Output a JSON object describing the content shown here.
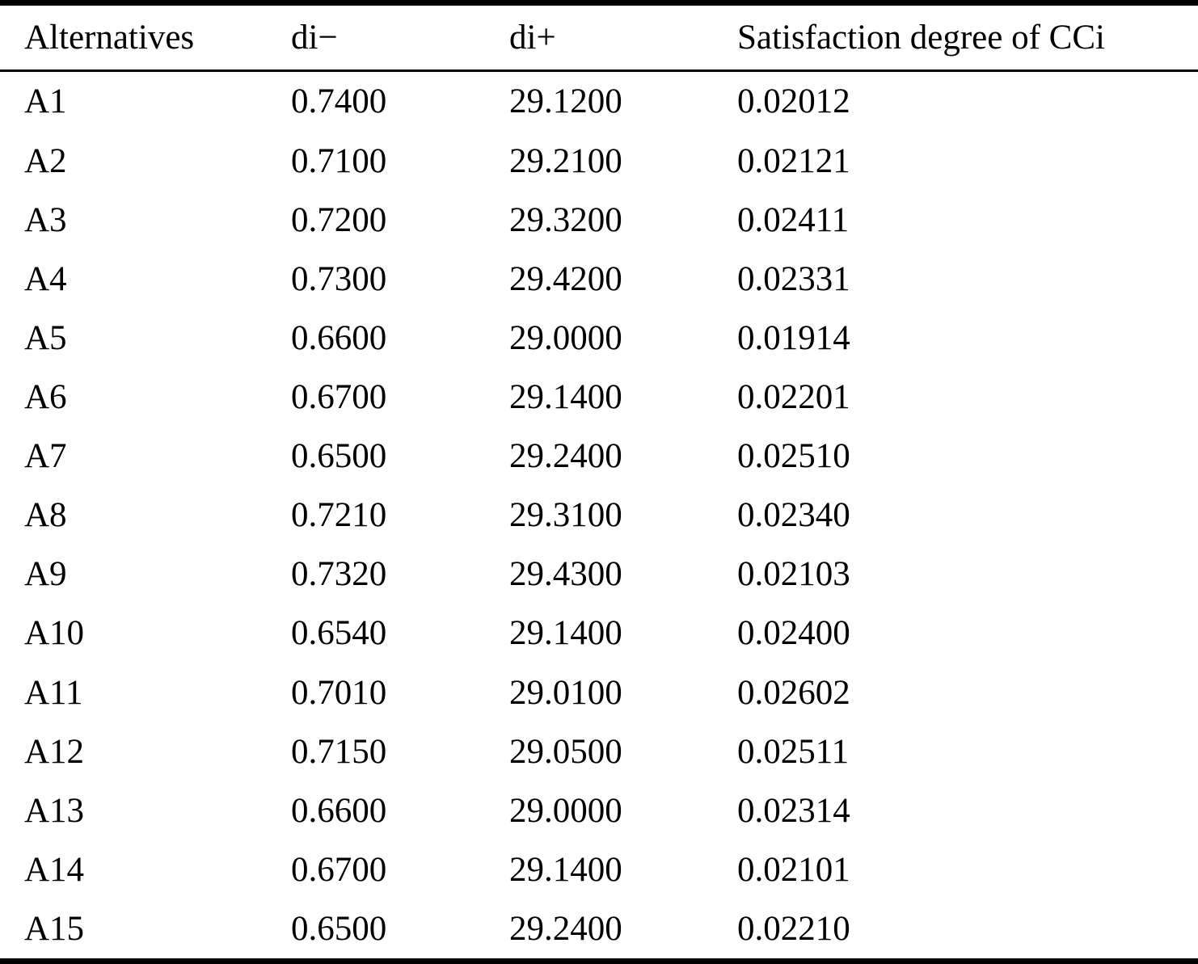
{
  "table": {
    "columns": [
      "Alternatives",
      "di−",
      "di+",
      "Satisfaction degree of CCi"
    ],
    "rows": [
      {
        "alternative": "A1",
        "di_minus": "0.7400",
        "di_plus": "29.1200",
        "satisfaction_degree": "0.02012"
      },
      {
        "alternative": "A2",
        "di_minus": "0.7100",
        "di_plus": "29.2100",
        "satisfaction_degree": "0.02121"
      },
      {
        "alternative": "A3",
        "di_minus": "0.7200",
        "di_plus": "29.3200",
        "satisfaction_degree": "0.02411"
      },
      {
        "alternative": "A4",
        "di_minus": "0.7300",
        "di_plus": "29.4200",
        "satisfaction_degree": "0.02331"
      },
      {
        "alternative": "A5",
        "di_minus": "0.6600",
        "di_plus": "29.0000",
        "satisfaction_degree": "0.01914"
      },
      {
        "alternative": "A6",
        "di_minus": "0.6700",
        "di_plus": "29.1400",
        "satisfaction_degree": "0.02201"
      },
      {
        "alternative": "A7",
        "di_minus": "0.6500",
        "di_plus": "29.2400",
        "satisfaction_degree": "0.02510"
      },
      {
        "alternative": "A8",
        "di_minus": "0.7210",
        "di_plus": "29.3100",
        "satisfaction_degree": "0.02340"
      },
      {
        "alternative": "A9",
        "di_minus": "0.7320",
        "di_plus": "29.4300",
        "satisfaction_degree": "0.02103"
      },
      {
        "alternative": "A10",
        "di_minus": "0.6540",
        "di_plus": "29.1400",
        "satisfaction_degree": "0.02400"
      },
      {
        "alternative": "A11",
        "di_minus": "0.7010",
        "di_plus": "29.0100",
        "satisfaction_degree": "0.02602"
      },
      {
        "alternative": "A12",
        "di_minus": "0.7150",
        "di_plus": "29.0500",
        "satisfaction_degree": "0.02511"
      },
      {
        "alternative": "A13",
        "di_minus": "0.6600",
        "di_plus": "29.0000",
        "satisfaction_degree": "0.02314"
      },
      {
        "alternative": "A14",
        "di_minus": "0.6700",
        "di_plus": "29.1400",
        "satisfaction_degree": "0.02101"
      },
      {
        "alternative": "A15",
        "di_minus": "0.6500",
        "di_plus": "29.2400",
        "satisfaction_degree": "0.02210"
      }
    ]
  },
  "colors": {
    "text": "#000000",
    "background": "#ffffff",
    "rule": "#000000"
  }
}
